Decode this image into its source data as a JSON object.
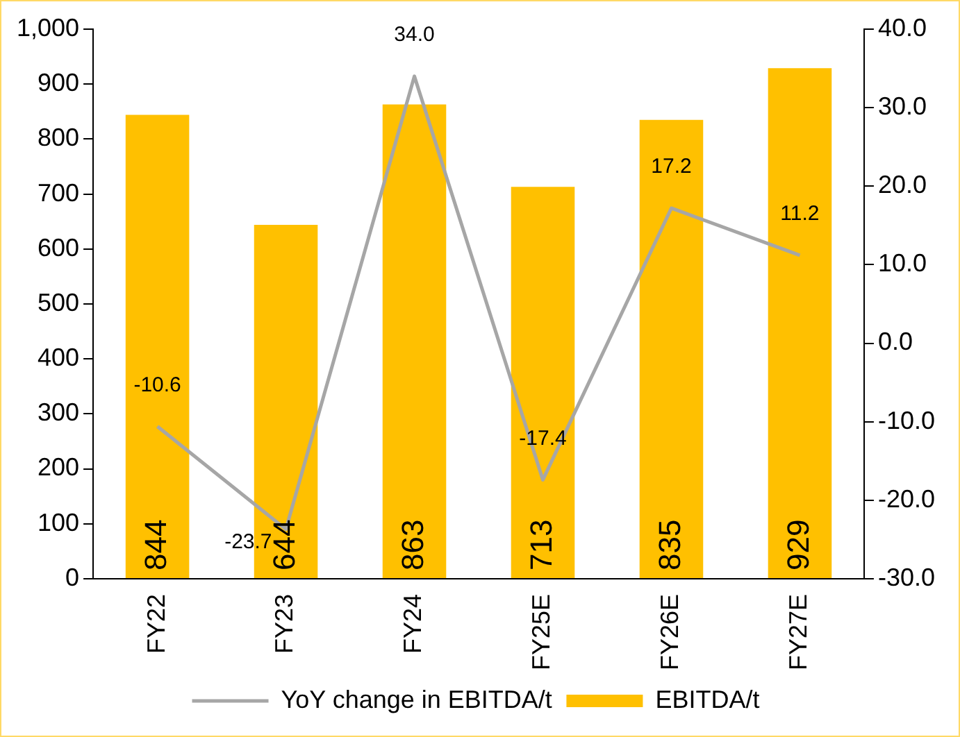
{
  "chart_data": {
    "type": "bar",
    "categories": [
      "FY22",
      "FY23",
      "FY24",
      "FY25E",
      "FY26E",
      "FY27E"
    ],
    "series": [
      {
        "name": "EBITDA/t",
        "color": "#ffc000",
        "values": [
          844,
          644,
          863,
          713,
          835,
          929
        ],
        "value_labels": [
          "844",
          "644",
          "863",
          "713",
          "835",
          "929"
        ]
      },
      {
        "name": "YoY change in EBITDA/t",
        "type": "line",
        "axis": "y2",
        "color": "#a6a6a6",
        "values": [
          -10.6,
          -23.7,
          34.0,
          -17.4,
          17.2,
          11.2
        ],
        "value_labels": [
          "-10.6",
          "-23.7",
          "34.0",
          "-17.4",
          "17.2",
          "11.2"
        ]
      }
    ],
    "ylim": [
      0,
      1000
    ],
    "yticks": [
      0,
      {
        "value": 100,
        "label": "100"
      },
      200,
      300,
      400,
      500,
      600,
      700,
      800,
      900,
      {
        "value": 1000,
        "label": "1,000"
      }
    ],
    "y2lim": [
      -30,
      40
    ],
    "y2ticks": [
      {
        "value": -30,
        "label": "-30.0"
      },
      {
        "value": -20,
        "label": "-20.0"
      },
      {
        "value": -10,
        "label": "-10.0"
      },
      {
        "value": 0,
        "label": "0.0"
      },
      {
        "value": 10,
        "label": "10.0"
      },
      {
        "value": 20,
        "label": "20.0"
      },
      {
        "value": 30,
        "label": "30.0"
      },
      {
        "value": 40,
        "label": "40.0"
      }
    ],
    "grid": false,
    "legend": "bottom",
    "marker": "none",
    "line_style": "solid"
  }
}
